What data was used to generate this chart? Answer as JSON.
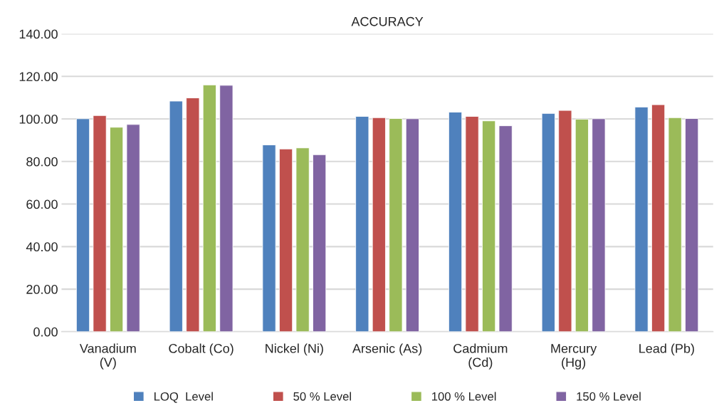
{
  "chart_data": {
    "type": "bar",
    "title": "ACCURACY",
    "categories": [
      "Vanadium\n(V)",
      "Cobalt (Co)",
      "Nickel (Ni)",
      "Arsenic (As)",
      "Cadmium\n(Cd)",
      "Mercury\n(Hg)",
      "Lead (Pb)"
    ],
    "series": [
      {
        "name": "LOQ  Level",
        "color": "#4f81bd",
        "values": [
          100.1,
          108.4,
          87.8,
          101.2,
          103.2,
          102.6,
          105.6
        ]
      },
      {
        "name": "50 % Level",
        "color": "#c0504d",
        "values": [
          101.6,
          109.9,
          85.9,
          100.6,
          101.2,
          104.0,
          106.7
        ]
      },
      {
        "name": "100 % Level",
        "color": "#9bbb59",
        "values": [
          96.1,
          116.0,
          86.4,
          100.2,
          99.1,
          99.9,
          100.6
        ]
      },
      {
        "name": "150 % Level",
        "color": "#8064a2",
        "values": [
          97.4,
          115.8,
          83.2,
          100.1,
          96.8,
          100.1,
          100.2
        ]
      }
    ],
    "ylim": [
      0,
      140
    ],
    "yticks": [
      {
        "value": 0,
        "label": "0.00"
      },
      {
        "value": 20,
        "label": "20.00"
      },
      {
        "value": 40,
        "label": "40.00"
      },
      {
        "value": 60,
        "label": "60.00"
      },
      {
        "value": 80,
        "label": "80.00"
      },
      {
        "value": 100,
        "label": "100.00"
      },
      {
        "value": 120,
        "label": "120.00"
      },
      {
        "value": 140,
        "label": "140.00"
      }
    ],
    "grid": "y",
    "legend": "bottom"
  }
}
